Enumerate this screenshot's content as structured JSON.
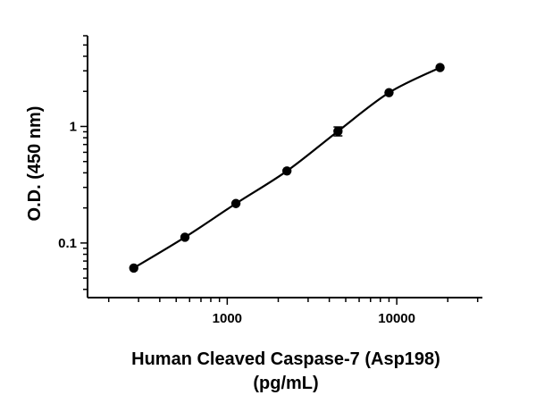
{
  "chart_data": {
    "type": "scatter",
    "xlabel": [
      "Human Cleaved Caspase-7 (Asp198)",
      "(pg/mL)"
    ],
    "ylabel": "O.D. (450 nm)",
    "xscale": "log",
    "yscale": "log",
    "xlim": [
      150,
      32000
    ],
    "ylim": [
      0.034,
      6.0
    ],
    "x_ticks": [
      {
        "value": 1000,
        "label": "1000"
      },
      {
        "value": 10000,
        "label": "10000"
      }
    ],
    "y_ticks": [
      {
        "value": 0.1,
        "label": "0.1"
      },
      {
        "value": 1,
        "label": "1"
      }
    ],
    "grid": false,
    "legend": "none",
    "series": [
      {
        "points": [
          {
            "x": 281,
            "y": 0.061
          },
          {
            "x": 563,
            "y": 0.112
          },
          {
            "x": 1125,
            "y": 0.218
          },
          {
            "x": 2250,
            "y": 0.415
          },
          {
            "x": 4500,
            "y": 0.91,
            "err": 0.08
          },
          {
            "x": 9000,
            "y": 1.95
          },
          {
            "x": 18000,
            "y": 3.2
          }
        ]
      }
    ],
    "fit": "4-parameter logistic curve through the points"
  }
}
